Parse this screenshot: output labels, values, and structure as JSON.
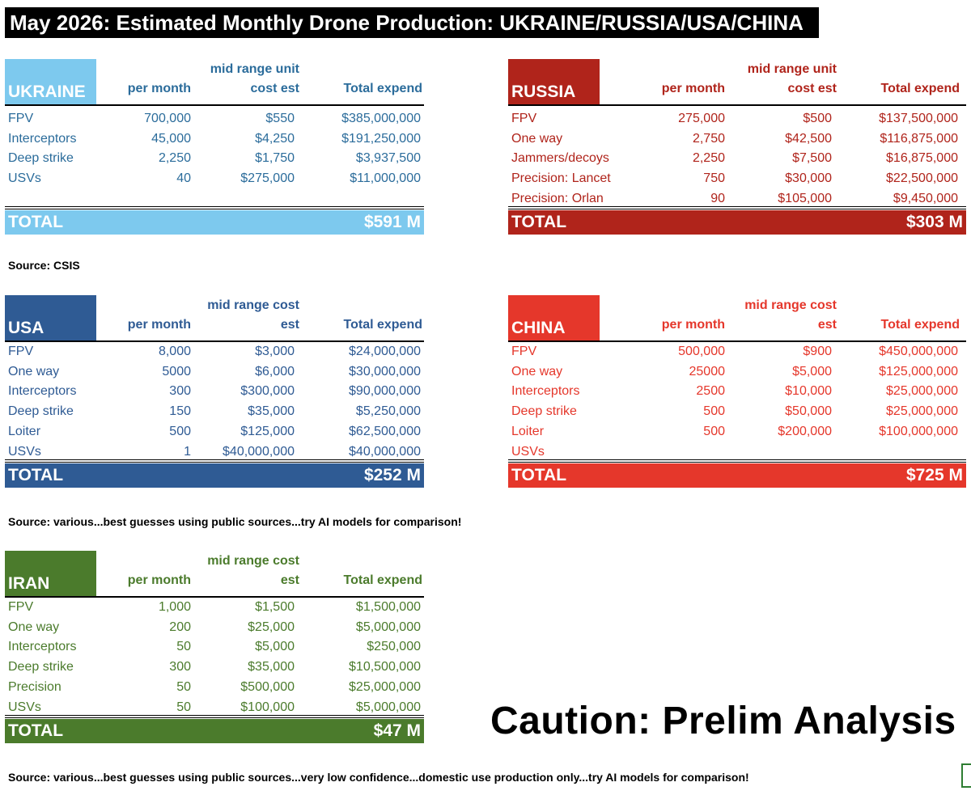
{
  "title": "May 2026: Estimated Monthly Drone Production: UKRAINE/RUSSIA/USA/CHINA",
  "colors": {
    "ukraine": "#7dc9ee",
    "russia": "#b0241b",
    "usa": "#2f5b94",
    "china": "#e5372b",
    "iran": "#4b7b2c"
  },
  "ukraine": {
    "name": "UKRAINE",
    "col_per_month": "per month",
    "col_cost_1": "mid range unit",
    "col_cost_2": "cost est",
    "col_total": "Total expend",
    "rows": [
      {
        "label": "FPV",
        "per_month": "700,000",
        "cost": "$550",
        "total": "$385,000,000"
      },
      {
        "label": "Interceptors",
        "per_month": "45,000",
        "cost": "$4,250",
        "total": "$191,250,000"
      },
      {
        "label": "Deep strike",
        "per_month": "2,250",
        "cost": "$1,750",
        "total": "$3,937,500"
      },
      {
        "label": "USVs",
        "per_month": "40",
        "cost": "$275,000",
        "total": "$11,000,000"
      }
    ],
    "total_label": "TOTAL",
    "total_value": "$591 M"
  },
  "russia": {
    "name": "RUSSIA",
    "col_per_month": "per month",
    "col_cost_1": "mid range unit",
    "col_cost_2": "cost est",
    "col_total": "Total expend",
    "rows": [
      {
        "label": "FPV",
        "per_month": "275,000",
        "cost": "$500",
        "total": "$137,500,000"
      },
      {
        "label": "One way",
        "per_month": "2,750",
        "cost": "$42,500",
        "total": "$116,875,000"
      },
      {
        "label": "Jammers/decoys",
        "per_month": "2,250",
        "cost": "$7,500",
        "total": "$16,875,000"
      },
      {
        "label": "Precision: Lancet",
        "per_month": "750",
        "cost": "$30,000",
        "total": "$22,500,000"
      },
      {
        "label": "Precision: Orlan",
        "per_month": "90",
        "cost": "$105,000",
        "total": "$9,450,000"
      }
    ],
    "total_label": "TOTAL",
    "total_value": "$303 M"
  },
  "source_1": "Source: CSIS",
  "usa": {
    "name": "USA",
    "col_per_month": "per month",
    "col_cost_1": "mid range cost",
    "col_cost_2": "est",
    "col_total": "Total expend",
    "rows": [
      {
        "label": "FPV",
        "per_month": "8,000",
        "cost": "$3,000",
        "total": "$24,000,000"
      },
      {
        "label": "One way",
        "per_month": "5000",
        "cost": "$6,000",
        "total": "$30,000,000"
      },
      {
        "label": "Interceptors",
        "per_month": "300",
        "cost": "$300,000",
        "total": "$90,000,000"
      },
      {
        "label": "Deep strike",
        "per_month": "150",
        "cost": "$35,000",
        "total": "$5,250,000"
      },
      {
        "label": "Loiter",
        "per_month": "500",
        "cost": "$125,000",
        "total": "$62,500,000"
      },
      {
        "label": "USVs",
        "per_month": "1",
        "cost": "$40,000,000",
        "total": "$40,000,000"
      }
    ],
    "total_label": "TOTAL",
    "total_value": "$252 M"
  },
  "china": {
    "name": "CHINA",
    "col_per_month": "per month",
    "col_cost_1": "mid range cost",
    "col_cost_2": "est",
    "col_total": "Total expend",
    "rows": [
      {
        "label": "FPV",
        "per_month": "500,000",
        "cost": "$900",
        "total": "$450,000,000"
      },
      {
        "label": "One way",
        "per_month": "25000",
        "cost": "$5,000",
        "total": "$125,000,000"
      },
      {
        "label": "Interceptors",
        "per_month": "2500",
        "cost": "$10,000",
        "total": "$25,000,000"
      },
      {
        "label": "Deep strike",
        "per_month": "500",
        "cost": "$50,000",
        "total": "$25,000,000"
      },
      {
        "label": "Loiter",
        "per_month": "500",
        "cost": "$200,000",
        "total": "$100,000,000"
      },
      {
        "label": "USVs",
        "per_month": "",
        "cost": "",
        "total": ""
      }
    ],
    "total_label": "TOTAL",
    "total_value": "$725 M"
  },
  "source_2": "Source: various...best guesses using public sources...try AI models for comparison!",
  "iran": {
    "name": "IRAN",
    "col_per_month": "per month",
    "col_cost_1": "mid range cost",
    "col_cost_2": "est",
    "col_total": "Total expend",
    "rows": [
      {
        "label": "FPV",
        "per_month": "1,000",
        "cost": "$1,500",
        "total": "$1,500,000"
      },
      {
        "label": "One way",
        "per_month": "200",
        "cost": "$25,000",
        "total": "$5,000,000"
      },
      {
        "label": "Interceptors",
        "per_month": "50",
        "cost": "$5,000",
        "total": "$250,000"
      },
      {
        "label": "Deep strike",
        "per_month": "300",
        "cost": "$35,000",
        "total": "$10,500,000"
      },
      {
        "label": "Precision",
        "per_month": "50",
        "cost": "$500,000",
        "total": "$25,000,000"
      },
      {
        "label": "USVs",
        "per_month": "50",
        "cost": "$100,000",
        "total": "$5,000,000"
      }
    ],
    "total_label": "TOTAL",
    "total_value": "$47 M"
  },
  "caution": "Caution: Prelim Analysis",
  "source_3": "Source: various...best guesses using public sources...very low confidence...domestic use production only...try AI models for comparison!"
}
